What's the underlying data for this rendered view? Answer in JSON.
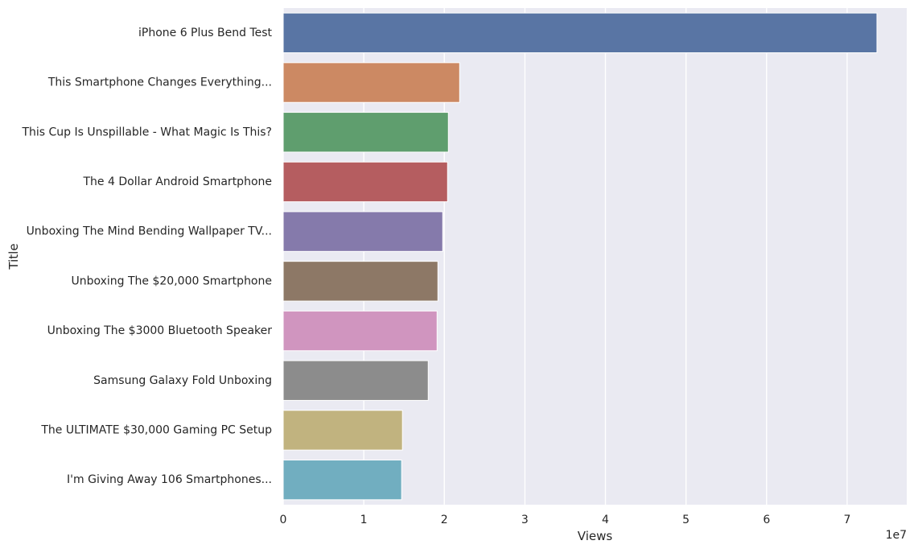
{
  "chart_data": {
    "type": "bar",
    "orientation": "horizontal",
    "title": "",
    "xlabel": "Views",
    "ylabel": "Title",
    "x_offset_label": "1e7",
    "xlim": [
      0,
      77400000
    ],
    "x_ticks": [
      0,
      10000000,
      20000000,
      30000000,
      40000000,
      50000000,
      60000000,
      70000000
    ],
    "x_tick_labels": [
      "0",
      "1",
      "2",
      "3",
      "4",
      "5",
      "6",
      "7"
    ],
    "grid": true,
    "background": "#eaeaf2",
    "categories": [
      "iPhone 6 Plus Bend Test",
      "This Smartphone Changes Everything...",
      "This Cup Is Unspillable - What Magic Is This?",
      "The 4 Dollar Android Smartphone",
      "Unboxing The Mind Bending Wallpaper TV...",
      "Unboxing The $20,000 Smartphone",
      "Unboxing The $3000 Bluetooth Speaker",
      "Samsung Galaxy Fold Unboxing",
      "The ULTIMATE $30,000 Gaming PC Setup",
      "I'm Giving Away 106 Smartphones..."
    ],
    "values": [
      73700000,
      21900000,
      20500000,
      20400000,
      19800000,
      19200000,
      19100000,
      18000000,
      14800000,
      14700000
    ],
    "colors": [
      "#5975a4",
      "#cc8963",
      "#5f9e6e",
      "#b55d60",
      "#857aab",
      "#8d7866",
      "#d095bf",
      "#8c8c8c",
      "#c1b37f",
      "#71aec0"
    ]
  }
}
